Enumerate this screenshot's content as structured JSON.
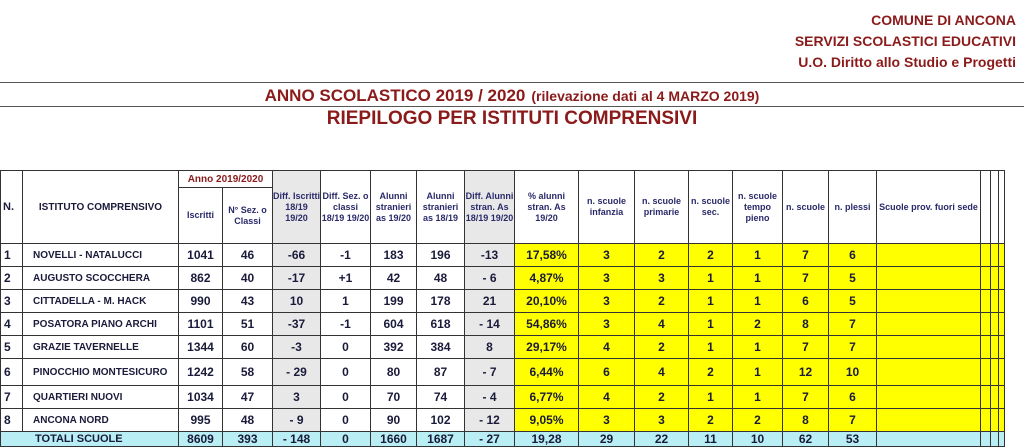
{
  "header": {
    "line1": "COMUNE DI ANCONA",
    "line2": "SERVIZI SCOLASTICI EDUCATIVI",
    "line3": "U.O. Diritto allo Studio e Progetti"
  },
  "year_title": "ANNO SCOLASTICO 2019 / 2020",
  "rilevazione": "(rilevazione dati al 4 MARZO 2019)",
  "subtitle": "RIEPILOGO PER ISTITUTI COMPRENSIVI",
  "table": {
    "group_header": "Anno 2019/2020",
    "headers": {
      "n": "N.",
      "istituto": "ISTITUTO COMPRENSIVO",
      "iscritti": "Iscritti",
      "sezioni": "N° Sez. o Classi",
      "diff_iscritti": "Diff. Iscritti 18/19 19/20",
      "diff_sez": "Diff. Sez. o classi 18/19 19/20",
      "alunni_stranieri": "Alunni stranieri as 19/20",
      "alunni_stranieri_1819": "Alunni stranieri as 18/19",
      "diff_alunni": "Diff. Alunni stran. As 18/19 19/20",
      "perc": "% alunni stran. As 19/20",
      "scuole_infanzia": "n. scuole infanzia",
      "scuole_primarie": "n. scuole primarie",
      "scuole_sec": "n. scuole sec.",
      "scuole_tempo_pieno": "n. scuole tempo pieno",
      "n_scuole": "n. scuole",
      "n_plessi": "n. plessi",
      "prov_fuori_sede": "Scuole prov. fuori sede"
    },
    "rows": [
      {
        "n": "1",
        "name": "NOVELLI - NATALUCCI",
        "iscritti": "1041",
        "sez": "46",
        "diff_isc": "-66",
        "diff_sez": "-1",
        "str1920": "183",
        "str1819": "196",
        "diff_str": "-13",
        "perc": "17,58%",
        "inf": "3",
        "prim": "2",
        "sec": "2",
        "tp": "1",
        "scuole": "7",
        "plessi": "6"
      },
      {
        "n": "2",
        "name": "AUGUSTO SCOCCHERA",
        "iscritti": "862",
        "sez": "40",
        "diff_isc": "-17",
        "diff_sez": "+1",
        "str1920": "42",
        "str1819": "48",
        "diff_str": "- 6",
        "perc": "4,87%",
        "inf": "3",
        "prim": "3",
        "sec": "1",
        "tp": "1",
        "scuole": "7",
        "plessi": "5"
      },
      {
        "n": "3",
        "name": "CITTADELLA - M. HACK",
        "iscritti": "990",
        "sez": "43",
        "diff_isc": "10",
        "diff_sez": "1",
        "str1920": "199",
        "str1819": "178",
        "diff_str": "21",
        "perc": "20,10%",
        "inf": "3",
        "prim": "2",
        "sec": "1",
        "tp": "1",
        "scuole": "6",
        "plessi": "5"
      },
      {
        "n": "4",
        "name": "POSATORA PIANO ARCHI",
        "iscritti": "1101",
        "sez": "51",
        "diff_isc": "-37",
        "diff_sez": "-1",
        "str1920": "604",
        "str1819": "618",
        "diff_str": "- 14",
        "perc": "54,86%",
        "inf": "3",
        "prim": "4",
        "sec": "1",
        "tp": "2",
        "scuole": "8",
        "plessi": "7"
      },
      {
        "n": "5",
        "name": "GRAZIE TAVERNELLE",
        "iscritti": "1344",
        "sez": "60",
        "diff_isc": "-3",
        "diff_sez": "0",
        "str1920": "392",
        "str1819": "384",
        "diff_str": "8",
        "perc": "29,17%",
        "inf": "4",
        "prim": "2",
        "sec": "1",
        "tp": "1",
        "scuole": "7",
        "plessi": "7"
      },
      {
        "n": "6",
        "name": "PINOCCHIO MONTESICURO",
        "iscritti": "1242",
        "sez": "58",
        "diff_isc": "- 29",
        "diff_sez": "0",
        "str1920": "80",
        "str1819": "87",
        "diff_str": "- 7",
        "perc": "6,44%",
        "inf": "6",
        "prim": "4",
        "sec": "2",
        "tp": "1",
        "scuole": "12",
        "plessi": "10"
      },
      {
        "n": "7",
        "name": "QUARTIERI NUOVI",
        "iscritti": "1034",
        "sez": "47",
        "diff_isc": "3",
        "diff_sez": "0",
        "str1920": "70",
        "str1819": "74",
        "diff_str": "- 4",
        "perc": "6,77%",
        "inf": "4",
        "prim": "2",
        "sec": "1",
        "tp": "1",
        "scuole": "7",
        "plessi": "6"
      },
      {
        "n": "8",
        "name": "ANCONA NORD",
        "iscritti": "995",
        "sez": "48",
        "diff_isc": "- 9",
        "diff_sez": "0",
        "str1920": "90",
        "str1819": "102",
        "diff_str": "- 12",
        "perc": "9,05%",
        "inf": "3",
        "prim": "3",
        "sec": "2",
        "tp": "2",
        "scuole": "8",
        "plessi": "7"
      }
    ],
    "totals": {
      "label": "TOTALI SCUOLE",
      "iscritti": "8609",
      "sez": "393",
      "diff_isc": "- 148",
      "diff_sez": "0",
      "str1920": "1660",
      "str1819": "1687",
      "diff_str": "- 27",
      "perc": "19,28",
      "inf": "29",
      "prim": "22",
      "sec": "11",
      "tp": "10",
      "scuole": "62",
      "plessi": "53"
    }
  }
}
